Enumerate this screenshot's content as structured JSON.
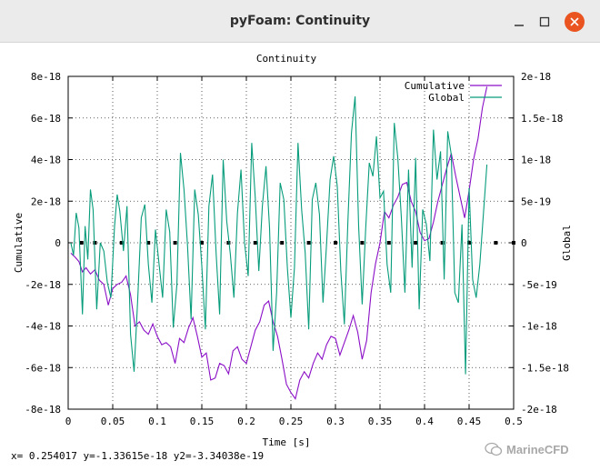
{
  "window": {
    "title": "pyFoam: Continuity",
    "close_color": "#e95420"
  },
  "status_bar": {
    "coordinates": "x= 0.254017 y=-1.33615e-18 y2=-3.34038e-19"
  },
  "watermark": {
    "text": "MarineCFD"
  },
  "chart_data": {
    "type": "line",
    "title": "Continuity",
    "xlabel": "Time [s]",
    "ylabel": "Cumulative",
    "y2label": "Global",
    "xlim": [
      0,
      0.5
    ],
    "ylim": [
      -8e-18,
      8e-18
    ],
    "y2lim": [
      -2e-18,
      2e-18
    ],
    "x_ticks": [
      0,
      0.05,
      0.1,
      0.15,
      0.2,
      0.25,
      0.3,
      0.35,
      0.4,
      0.45,
      0.5
    ],
    "x_tick_labels": [
      "0",
      "0.05",
      "0.1",
      "0.15",
      "0.2",
      "0.25",
      "0.3",
      "0.35",
      "0.4",
      "0.45",
      "0.5"
    ],
    "y_ticks": [
      -8e-18,
      -6e-18,
      -4e-18,
      -2e-18,
      0,
      2e-18,
      4e-18,
      6e-18,
      8e-18
    ],
    "y_tick_labels": [
      "-8e-18",
      "-6e-18",
      "-4e-18",
      "-2e-18",
      "0",
      "2e-18",
      "4e-18",
      "6e-18",
      "8e-18"
    ],
    "y2_ticks": [
      -2e-18,
      -1.5e-18,
      -1e-18,
      -5e-19,
      0,
      5e-19,
      1e-18,
      1.5e-18,
      2e-18
    ],
    "y2_tick_labels": [
      "-2e-18",
      "-1.5e-18",
      "-1e-18",
      "-5e-19",
      "0",
      "5e-19",
      "1e-18",
      "1.5e-18",
      "2e-18"
    ],
    "grid": true,
    "legend_position": "top-right",
    "zero_markers_x": [
      0.015,
      0.03,
      0.06,
      0.09,
      0.12,
      0.15,
      0.18,
      0.21,
      0.24,
      0.27,
      0.3,
      0.33,
      0.36,
      0.39,
      0.42,
      0.45,
      0.48,
      0.5
    ],
    "series": [
      {
        "name": "Cumulative",
        "axis": "y",
        "color": "#8b0fc7",
        "points": [
          [
            0.003,
            -5e-19
          ],
          [
            0.008,
            -7e-19
          ],
          [
            0.012,
            -9e-19
          ],
          [
            0.016,
            -1.4e-18
          ],
          [
            0.02,
            -1.2e-18
          ],
          [
            0.025,
            -1.5e-18
          ],
          [
            0.03,
            -1.3e-18
          ],
          [
            0.035,
            -1.8e-18
          ],
          [
            0.04,
            -2e-18
          ],
          [
            0.045,
            -3e-18
          ],
          [
            0.05,
            -2.2e-18
          ],
          [
            0.055,
            -2e-18
          ],
          [
            0.06,
            -1.9e-18
          ],
          [
            0.065,
            -1.6e-18
          ],
          [
            0.07,
            -2.5e-18
          ],
          [
            0.075,
            -4e-18
          ],
          [
            0.08,
            -3.8e-18
          ],
          [
            0.085,
            -4.2e-18
          ],
          [
            0.09,
            -4.4e-18
          ],
          [
            0.095,
            -3.9e-18
          ],
          [
            0.1,
            -4.5e-18
          ],
          [
            0.105,
            -4.9e-18
          ],
          [
            0.11,
            -4.8e-18
          ],
          [
            0.115,
            -5e-18
          ],
          [
            0.12,
            -5.8e-18
          ],
          [
            0.125,
            -4.6e-18
          ],
          [
            0.13,
            -4.8e-18
          ],
          [
            0.135,
            -4.1e-18
          ],
          [
            0.14,
            -3.6e-18
          ],
          [
            0.145,
            -4.5e-18
          ],
          [
            0.15,
            -5.5e-18
          ],
          [
            0.155,
            -5.3e-18
          ],
          [
            0.16,
            -6.6e-18
          ],
          [
            0.165,
            -6.5e-18
          ],
          [
            0.17,
            -5.8e-18
          ],
          [
            0.175,
            -5.9e-18
          ],
          [
            0.18,
            -6.3e-18
          ],
          [
            0.185,
            -5.2e-18
          ],
          [
            0.19,
            -5e-18
          ],
          [
            0.195,
            -5.6e-18
          ],
          [
            0.2,
            -5.8e-18
          ],
          [
            0.205,
            -5e-18
          ],
          [
            0.21,
            -4.2e-18
          ],
          [
            0.215,
            -3.8e-18
          ],
          [
            0.22,
            -3e-18
          ],
          [
            0.225,
            -2.8e-18
          ],
          [
            0.23,
            -3.8e-18
          ],
          [
            0.235,
            -4.5e-18
          ],
          [
            0.24,
            -5.6e-18
          ],
          [
            0.245,
            -6.8e-18
          ],
          [
            0.25,
            -7.2e-18
          ],
          [
            0.255,
            -7.5e-18
          ],
          [
            0.26,
            -6.6e-18
          ],
          [
            0.265,
            -6.2e-18
          ],
          [
            0.27,
            -6.5e-18
          ],
          [
            0.275,
            -5.8e-18
          ],
          [
            0.28,
            -5.3e-18
          ],
          [
            0.285,
            -5.6e-18
          ],
          [
            0.29,
            -4.9e-18
          ],
          [
            0.295,
            -4.5e-18
          ],
          [
            0.3,
            -4.6e-18
          ],
          [
            0.305,
            -5.4e-18
          ],
          [
            0.31,
            -4.8e-18
          ],
          [
            0.315,
            -4.2e-18
          ],
          [
            0.32,
            -3.5e-18
          ],
          [
            0.325,
            -4.3e-18
          ],
          [
            0.33,
            -5.6e-18
          ],
          [
            0.335,
            -4.7e-18
          ],
          [
            0.34,
            -2.4e-18
          ],
          [
            0.345,
            -1e-18
          ],
          [
            0.35,
            0.0
          ],
          [
            0.355,
            1.5e-18
          ],
          [
            0.36,
            1.2e-18
          ],
          [
            0.365,
            1.8e-18
          ],
          [
            0.37,
            2.2e-18
          ],
          [
            0.375,
            2.8e-18
          ],
          [
            0.38,
            2.9e-18
          ],
          [
            0.385,
            2e-18
          ],
          [
            0.39,
            1.5e-18
          ],
          [
            0.395,
            5e-19
          ],
          [
            0.4,
            1e-19
          ],
          [
            0.405,
            2e-19
          ],
          [
            0.41,
            1e-18
          ],
          [
            0.415,
            2e-18
          ],
          [
            0.42,
            2.8e-18
          ],
          [
            0.425,
            3.6e-18
          ],
          [
            0.43,
            4.3e-18
          ],
          [
            0.435,
            3.2e-18
          ],
          [
            0.44,
            2.2e-18
          ],
          [
            0.445,
            1.2e-18
          ],
          [
            0.45,
            2.5e-18
          ],
          [
            0.455,
            4e-18
          ],
          [
            0.46,
            5e-18
          ],
          [
            0.465,
            6.5e-18
          ],
          [
            0.47,
            7.5e-18
          ]
        ]
      },
      {
        "name": "Global",
        "axis": "y2",
        "color": "#079c7b",
        "points": [
          [
            0.003,
            0.0
          ],
          [
            0.006,
            -1.5e-19
          ],
          [
            0.009,
            3.6e-19
          ],
          [
            0.012,
            1.8e-19
          ],
          [
            0.016,
            -8.6e-19
          ],
          [
            0.019,
            2e-19
          ],
          [
            0.022,
            -2e-19
          ],
          [
            0.025,
            6.4e-19
          ],
          [
            0.028,
            4e-19
          ],
          [
            0.032,
            -8e-19
          ],
          [
            0.036,
            0.0
          ],
          [
            0.04,
            -1e-19
          ],
          [
            0.044,
            -4.8e-19
          ],
          [
            0.048,
            -6.6e-19
          ],
          [
            0.052,
            2e-19
          ],
          [
            0.055,
            5.8e-19
          ],
          [
            0.058,
            3.8e-19
          ],
          [
            0.062,
            -1e-19
          ],
          [
            0.066,
            4.4e-19
          ],
          [
            0.07,
            -1.1e-18
          ],
          [
            0.074,
            -1.55e-18
          ],
          [
            0.078,
            -7e-19
          ],
          [
            0.082,
            3e-19
          ],
          [
            0.086,
            4.6e-19
          ],
          [
            0.09,
            -2.6e-19
          ],
          [
            0.094,
            -7.2e-19
          ],
          [
            0.098,
            1.6e-19
          ],
          [
            0.102,
            -2.6e-19
          ],
          [
            0.106,
            -6.6e-19
          ],
          [
            0.11,
            4e-19
          ],
          [
            0.114,
            1.3e-19
          ],
          [
            0.118,
            -1.02e-18
          ],
          [
            0.122,
            -5e-19
          ],
          [
            0.126,
            1.08e-18
          ],
          [
            0.13,
            6.4e-19
          ],
          [
            0.134,
            -4e-20
          ],
          [
            0.138,
            -9.2e-19
          ],
          [
            0.142,
            6.4e-19
          ],
          [
            0.146,
            3.4e-19
          ],
          [
            0.15,
            -2.8e-19
          ],
          [
            0.154,
            -1.04e-18
          ],
          [
            0.158,
            4.4e-19
          ],
          [
            0.162,
            8.2e-19
          ],
          [
            0.166,
            -1.2e-19
          ],
          [
            0.17,
            -8.6e-19
          ],
          [
            0.174,
            1e-18
          ],
          [
            0.178,
            2.6e-19
          ],
          [
            0.182,
            -1.4e-19
          ],
          [
            0.186,
            -6.6e-19
          ],
          [
            0.19,
            3.6e-19
          ],
          [
            0.194,
            8.8e-19
          ],
          [
            0.198,
            0.0
          ],
          [
            0.202,
            -4e-19
          ],
          [
            0.206,
            1.2e-18
          ],
          [
            0.21,
            5.4e-19
          ],
          [
            0.214,
            -3.4e-19
          ],
          [
            0.218,
            4.4e-19
          ],
          [
            0.222,
            9.2e-19
          ],
          [
            0.226,
            1.8e-19
          ],
          [
            0.23,
            -1.3e-18
          ],
          [
            0.234,
            -6e-19
          ],
          [
            0.238,
            7.2e-19
          ],
          [
            0.242,
            5.2e-19
          ],
          [
            0.246,
            -3e-19
          ],
          [
            0.25,
            -9e-19
          ],
          [
            0.254,
            -3e-19
          ],
          [
            0.258,
            1.2e-18
          ],
          [
            0.262,
            4e-19
          ],
          [
            0.266,
            -1.2e-19
          ],
          [
            0.27,
            -1.04e-18
          ],
          [
            0.274,
            5.2e-19
          ],
          [
            0.278,
            7.2e-19
          ],
          [
            0.282,
            3.4e-19
          ],
          [
            0.286,
            -7.2e-19
          ],
          [
            0.29,
            -2e-20
          ],
          [
            0.294,
            7.6e-19
          ],
          [
            0.298,
            1.04e-18
          ],
          [
            0.302,
            6.8e-19
          ],
          [
            0.306,
            -3.4e-19
          ],
          [
            0.31,
            -9.8e-19
          ],
          [
            0.314,
            2.6e-19
          ],
          [
            0.318,
            1.32e-18
          ],
          [
            0.322,
            1.76e-18
          ],
          [
            0.326,
            2e-19
          ],
          [
            0.33,
            -7.4e-19
          ],
          [
            0.334,
            1.8e-19
          ],
          [
            0.338,
            9.6e-19
          ],
          [
            0.342,
            8e-19
          ],
          [
            0.346,
            1.28e-18
          ],
          [
            0.35,
            5.4e-19
          ],
          [
            0.354,
            6.2e-19
          ],
          [
            0.358,
            -2.6e-19
          ],
          [
            0.362,
            -6e-19
          ],
          [
            0.366,
            1.44e-18
          ],
          [
            0.37,
            1.02e-18
          ],
          [
            0.374,
            3e-19
          ],
          [
            0.378,
            -6e-19
          ],
          [
            0.382,
            8.8e-19
          ],
          [
            0.386,
            -3e-19
          ],
          [
            0.39,
            1.02e-18
          ],
          [
            0.394,
            -8e-19
          ],
          [
            0.398,
            4e-19
          ],
          [
            0.402,
            2.2e-19
          ],
          [
            0.406,
            -2.2e-19
          ],
          [
            0.41,
            1.36e-18
          ],
          [
            0.414,
            7.6e-19
          ],
          [
            0.418,
            1.1e-18
          ],
          [
            0.422,
            -4.4e-19
          ],
          [
            0.426,
            1.34e-18
          ],
          [
            0.43,
            1.06e-18
          ],
          [
            0.434,
            -6e-19
          ],
          [
            0.438,
            -7.2e-19
          ],
          [
            0.442,
            2.2e-19
          ],
          [
            0.446,
            -1.58e-18
          ],
          [
            0.45,
            6.6e-19
          ],
          [
            0.454,
            -4.4e-19
          ],
          [
            0.458,
            -6.6e-19
          ],
          [
            0.462,
            -2.6e-19
          ],
          [
            0.466,
            3.4e-19
          ],
          [
            0.47,
            9.4e-19
          ]
        ]
      }
    ]
  }
}
